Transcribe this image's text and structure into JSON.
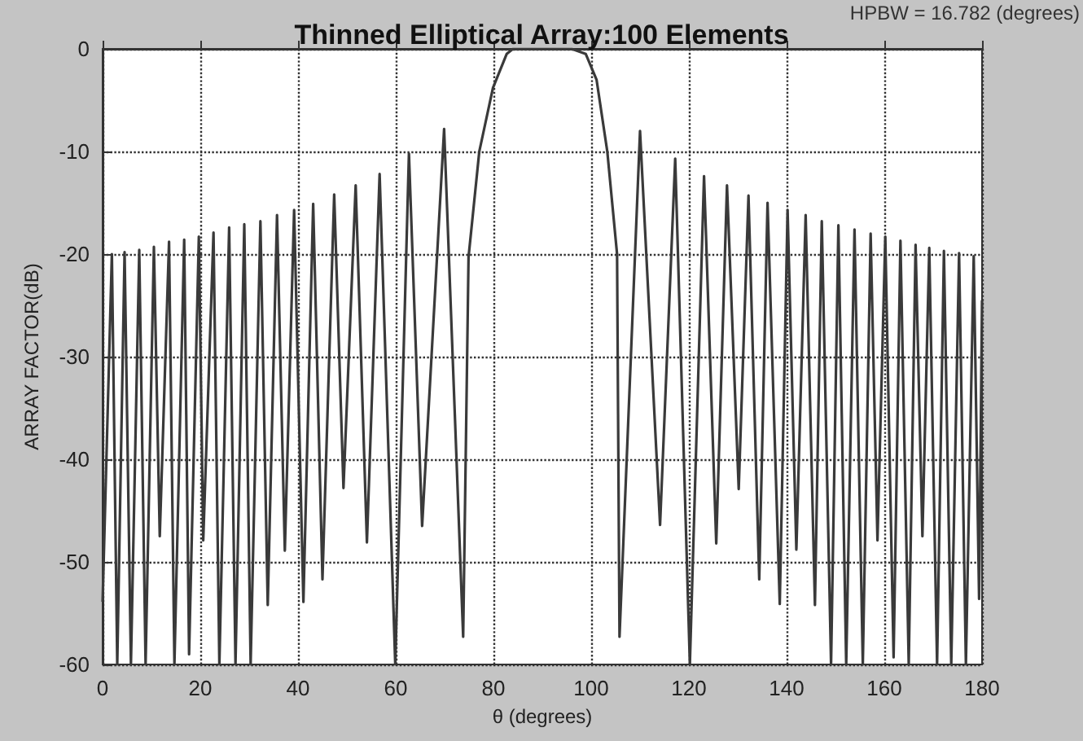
{
  "chart_data": {
    "type": "line",
    "title": "Thinned Elliptical Array:100 Elements",
    "xlabel": "θ (degrees)",
    "ylabel": "ARRAY FACTOR(dB)",
    "annotations": [
      "HPBW = 16.782 (degrees)"
    ],
    "xlim": [
      0,
      180
    ],
    "xticks": [
      0,
      20,
      40,
      60,
      80,
      100,
      120,
      140,
      160,
      180
    ],
    "ylim": [
      -60,
      0
    ],
    "yticks": [
      -60,
      -50,
      -40,
      -30,
      -20,
      -10,
      0
    ],
    "grid": true,
    "marker": "none",
    "line_style": "solid",
    "series": [
      {
        "color": "#3a3a3a",
        "x": [
          0,
          1.9,
          3.0,
          4.5,
          5.8,
          7.5,
          8.8,
          10.5,
          11.7,
          13.6,
          14.7,
          16.7,
          17.7,
          19.7,
          20.6,
          22.7,
          23.9,
          25.9,
          27.2,
          29,
          30.3,
          32.3,
          33.8,
          35.7,
          37.3,
          39.2,
          41.1,
          43.1,
          45,
          47.4,
          49.3,
          51.8,
          54.1,
          56.7,
          59.9,
          62.7,
          65.4,
          69.9,
          73.8,
          74.9,
          77.1,
          79.9,
          82.7,
          84,
          90,
          96,
          98.9,
          101.1,
          103.3,
          105.3,
          105.8,
          110,
          114.1,
          117.2,
          120.2,
          123.1,
          125.6,
          127.8,
          130.2,
          132.2,
          134.4,
          136.1,
          138.6,
          140.2,
          142,
          143.9,
          145.8,
          147.2,
          149.1,
          150.6,
          152.2,
          153.9,
          155.6,
          157.2,
          158.6,
          160.2,
          161.9,
          163.3,
          165,
          166.4,
          167.8,
          169.2,
          170.8,
          172.2,
          173.7,
          175.3,
          176.7,
          178.3,
          179.4,
          180
        ],
        "values": [
          -53.9,
          -20,
          -60,
          -19.8,
          -60,
          -19.6,
          -60,
          -19.3,
          -47.5,
          -18.8,
          -60,
          -18.6,
          -59,
          -18.3,
          -47.9,
          -17.9,
          -60,
          -17.4,
          -60,
          -17.1,
          -60,
          -16.8,
          -54.2,
          -16.2,
          -48.9,
          -15.7,
          -53.9,
          -15.1,
          -51.7,
          -14.2,
          -42.8,
          -13.3,
          -48.1,
          -12.2,
          -60,
          -10.2,
          -46.5,
          -7.8,
          -57.3,
          -20.3,
          -10,
          -3.8,
          -0.5,
          0,
          0,
          0,
          -0.5,
          -3,
          -10,
          -20,
          -57.3,
          -8,
          -46.4,
          -10.7,
          -60,
          -12.4,
          -48.2,
          -13.3,
          -42.9,
          -14.3,
          -51.7,
          -15,
          -54.1,
          -15.7,
          -48.8,
          -16.2,
          -54.2,
          -16.8,
          -60,
          -17.2,
          -60,
          -17.6,
          -60,
          -18,
          -47.9,
          -18.3,
          -59.3,
          -18.7,
          -60,
          -19.1,
          -47.5,
          -19.4,
          -60,
          -19.7,
          -60,
          -19.9,
          -60,
          -20.2,
          -53.6,
          -24.5
        ]
      }
    ]
  }
}
